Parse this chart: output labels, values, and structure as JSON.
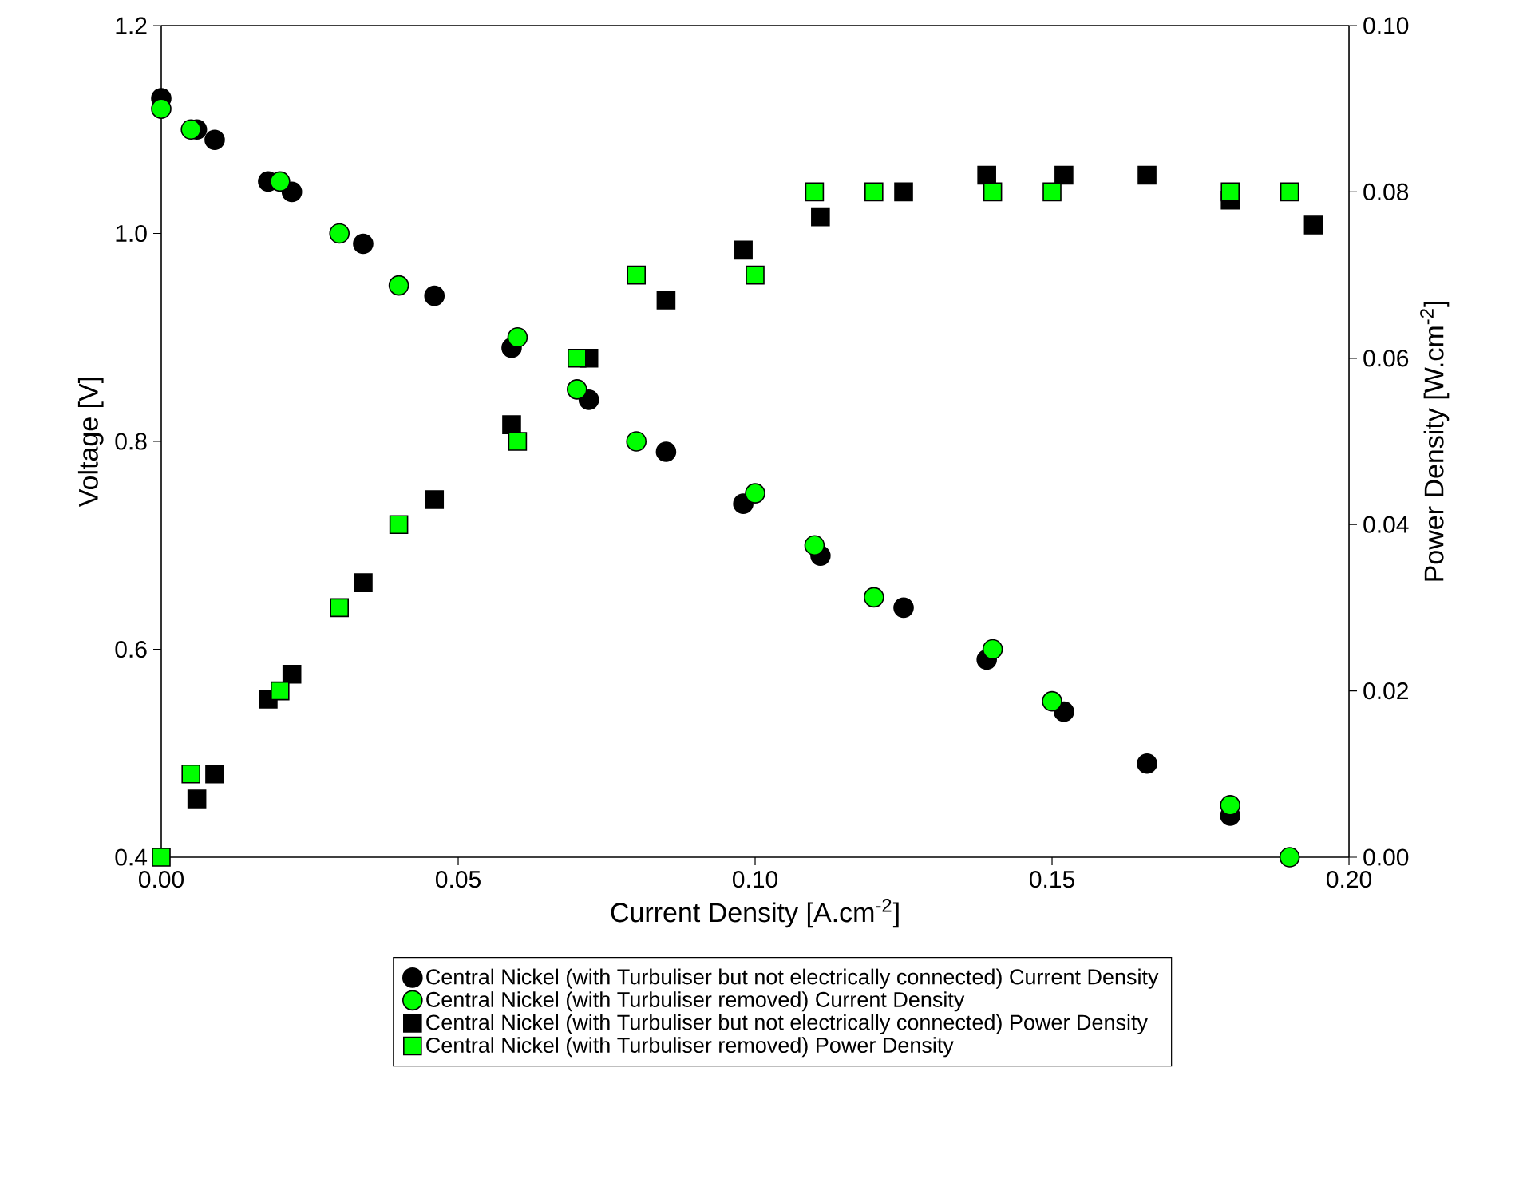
{
  "chart_data": {
    "type": "scatter",
    "xlabel": "Current Density [A.cm$^{-2}$]",
    "ylabel": "Voltage [V]",
    "y2label": "Power Density [W.cm$^{-2}$]",
    "xlim": [
      0,
      0.2
    ],
    "ylim": [
      0.4,
      1.2
    ],
    "y2lim": [
      0,
      0.1
    ],
    "xticks": [
      {
        "value": 0,
        "label": "0.00"
      },
      {
        "value": 0.05,
        "label": "0.05"
      },
      {
        "value": 0.1,
        "label": "0.10"
      },
      {
        "value": 0.15,
        "label": "0.15"
      },
      {
        "value": 0.2,
        "label": "0.20"
      }
    ],
    "yticks": [
      {
        "value": 0.4,
        "label": "0.4"
      },
      {
        "value": 0.6,
        "label": "0.6"
      },
      {
        "value": 0.8,
        "label": "0.8"
      },
      {
        "value": 1.0,
        "label": "1.0"
      },
      {
        "value": 1.2,
        "label": "1.2"
      }
    ],
    "y2ticks": [
      {
        "value": 0,
        "label": "0.00"
      },
      {
        "value": 0.02,
        "label": "0.02"
      },
      {
        "value": 0.04,
        "label": "0.04"
      },
      {
        "value": 0.06,
        "label": "0.06"
      },
      {
        "value": 0.08,
        "label": "0.08"
      },
      {
        "value": 0.1,
        "label": "0.10"
      }
    ],
    "legend": "bottom",
    "grid": false,
    "series": [
      {
        "name": "Central Nickel (with Turbuliser but not electrically connected) Current Density",
        "color": "#000000",
        "marker": "circle",
        "x": [
          0,
          0.006,
          0.009,
          0.018,
          0.022,
          0.034,
          0.046,
          0.059,
          0.072,
          0.085,
          0.098,
          0.111,
          0.125,
          0.139,
          0.152,
          0.166,
          0.18
        ],
        "values": [
          1.13,
          1.1,
          1.09,
          1.05,
          1.04,
          0.99,
          0.94,
          0.89,
          0.84,
          0.79,
          0.74,
          0.69,
          0.64,
          0.59,
          0.54,
          0.49,
          0.44
        ]
      },
      {
        "name": "Central Nickel (with Turbuliser removed) Current Density",
        "color": "#00ff00",
        "marker": "circle",
        "x": [
          0,
          0.005,
          0.02,
          0.03,
          0.04,
          0.06,
          0.07,
          0.08,
          0.1,
          0.11,
          0.12,
          0.14,
          0.15,
          0.18,
          0.19
        ],
        "values": [
          1.12,
          1.1,
          1.05,
          1.0,
          0.95,
          0.9,
          0.85,
          0.8,
          0.75,
          0.7,
          0.65,
          0.6,
          0.55,
          0.45,
          0.4
        ]
      },
      {
        "name": "Central Nickel (with Turbuliser but not electrically connected) Power Density",
        "color": "#000000",
        "marker": "square",
        "axis": "y2",
        "x": [
          0.006,
          0.009,
          0.018,
          0.022,
          0.034,
          0.046,
          0.059,
          0.072,
          0.085,
          0.098,
          0.111,
          0.125,
          0.139,
          0.152,
          0.166,
          0.18,
          0.194
        ],
        "values": [
          0.007,
          0.01,
          0.019,
          0.022,
          0.033,
          0.043,
          0.052,
          0.06,
          0.067,
          0.073,
          0.077,
          0.08,
          0.082,
          0.082,
          0.082,
          0.079,
          0.076
        ]
      },
      {
        "name": "Central Nickel (with Turbuliser removed) Power Density",
        "color": "#00ff00",
        "marker": "square",
        "axis": "y2",
        "x": [
          0,
          0.005,
          0.02,
          0.03,
          0.04,
          0.06,
          0.07,
          0.08,
          0.1,
          0.11,
          0.12,
          0.14,
          0.15,
          0.18,
          0.19
        ],
        "values": [
          0,
          0.01,
          0.02,
          0.03,
          0.04,
          0.05,
          0.06,
          0.07,
          0.07,
          0.08,
          0.08,
          0.08,
          0.08,
          0.08,
          0.08
        ]
      }
    ]
  }
}
